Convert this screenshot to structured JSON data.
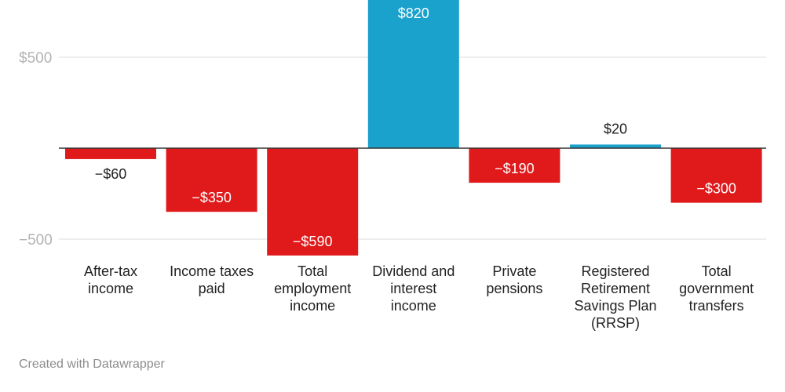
{
  "chart_data": {
    "type": "bar",
    "categories": [
      [
        "After-tax",
        "income"
      ],
      [
        "Income taxes",
        "paid"
      ],
      [
        "Total",
        "employment",
        "income"
      ],
      [
        "Dividend and",
        "interest",
        "income"
      ],
      [
        "Private",
        "pensions"
      ],
      [
        "Registered",
        "Retirement",
        "Savings Plan",
        "(RRSP)"
      ],
      [
        "Total",
        "government",
        "transfers"
      ]
    ],
    "values": [
      -60,
      -350,
      -590,
      820,
      -190,
      20,
      -300
    ],
    "value_labels": [
      "−$60",
      "−$350",
      "−$590",
      "$820",
      "−$190",
      "$20",
      "−$300"
    ],
    "yticks": [
      {
        "value": 500,
        "label": "$500"
      },
      {
        "value": -500,
        "label": "−500"
      }
    ],
    "ylim": [
      -600,
      820
    ],
    "grid": true,
    "colors": {
      "positive": "#1aa1cc",
      "negative": "#e0191b",
      "grid": "#dddddd",
      "baseline": "#333333"
    }
  },
  "credit": "Created with Datawrapper"
}
